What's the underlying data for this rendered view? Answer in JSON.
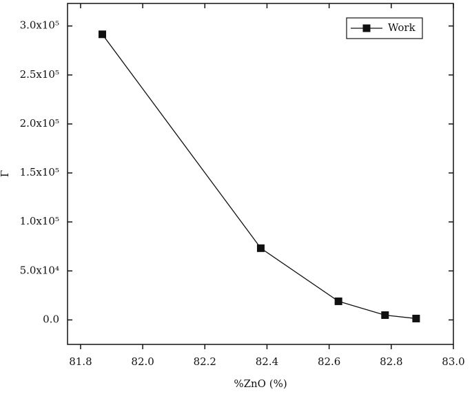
{
  "chart_data": {
    "type": "line",
    "x_label": "%ZnO (%)",
    "y_label": "Γ",
    "series": [
      {
        "name": "Work",
        "color": "#111111",
        "x": [
          81.87,
          82.38,
          82.63,
          82.78,
          82.88
        ],
        "values": [
          291500,
          73200,
          19000,
          4900,
          1400
        ]
      }
    ],
    "xlim": [
      81.758,
      83.0
    ],
    "xticks": [
      {
        "value": 81.8,
        "label": "81.8"
      },
      {
        "value": 82.0,
        "label": "82.0"
      },
      {
        "value": 82.2,
        "label": "82.2"
      },
      {
        "value": 82.4,
        "label": "82.4"
      },
      {
        "value": 82.6,
        "label": "82.6"
      },
      {
        "value": 82.8,
        "label": "82.8"
      },
      {
        "value": 83.0,
        "label": "83.0"
      }
    ],
    "ylim": [
      -25000,
      323000
    ],
    "yticks": [
      {
        "value": 0,
        "label": "0.0"
      },
      {
        "value": 50000,
        "label": "5.0x10⁴"
      },
      {
        "value": 100000,
        "label": "1.0x10⁵"
      },
      {
        "value": 150000,
        "label": "1.5x10⁵"
      },
      {
        "value": 200000,
        "label": "2.0x10⁵"
      },
      {
        "value": 250000,
        "label": "2.5x10⁵"
      },
      {
        "value": 300000,
        "label": "3.0x10⁵"
      }
    ],
    "legend": "top-right"
  }
}
